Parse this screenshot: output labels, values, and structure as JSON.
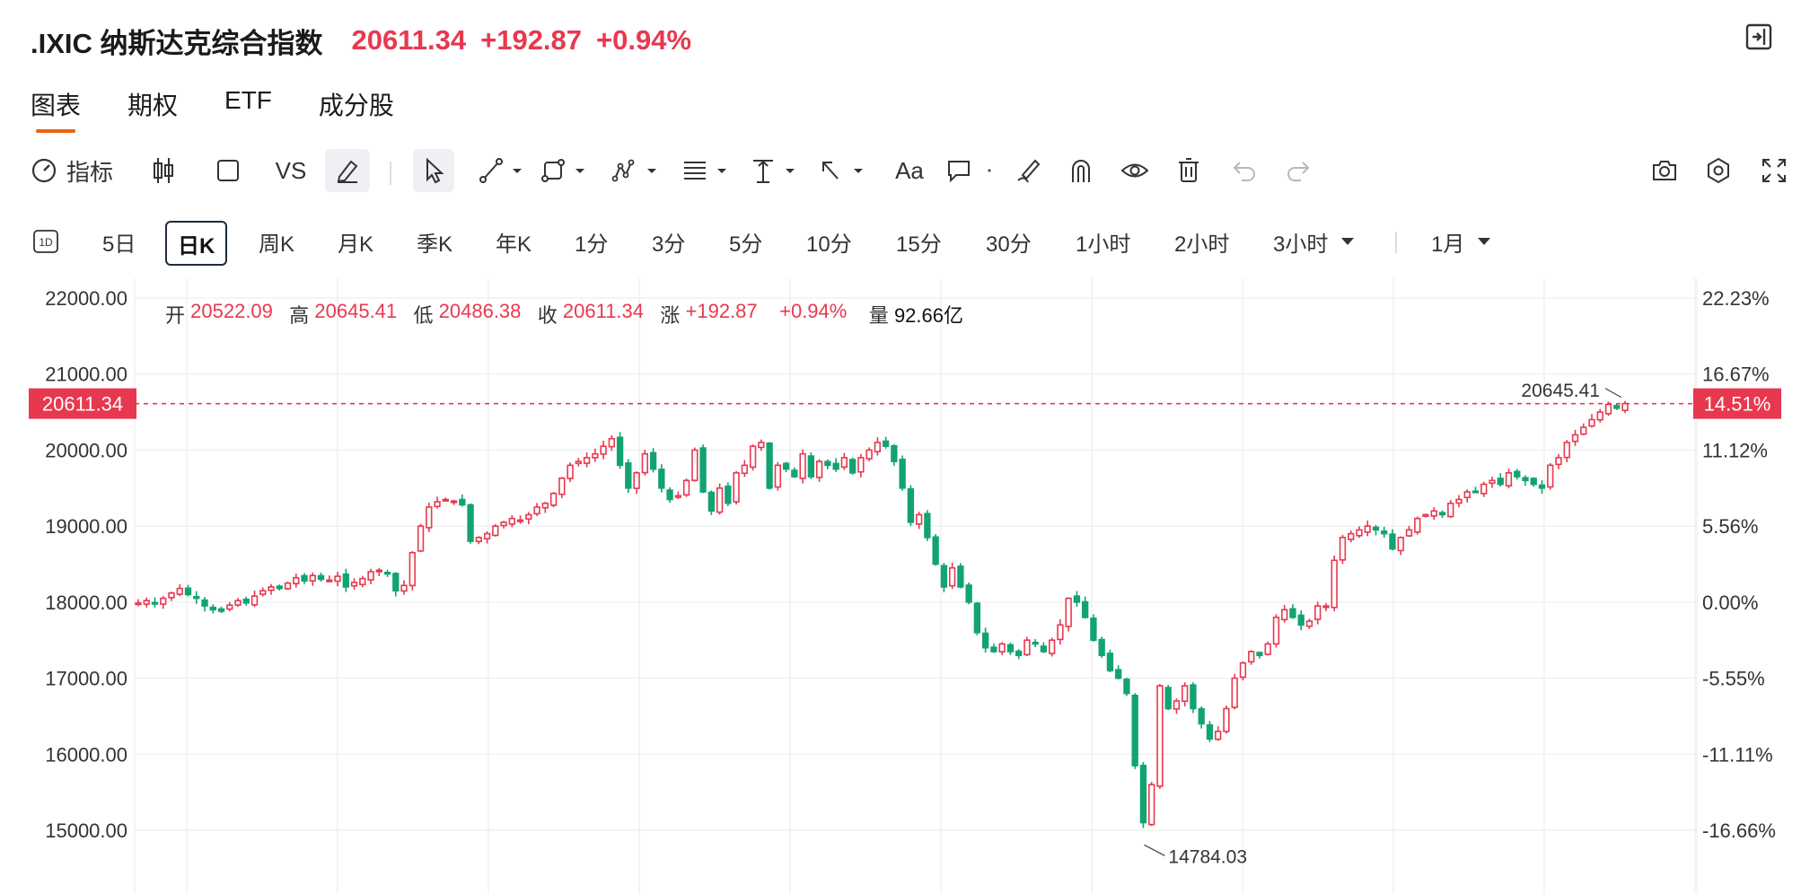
{
  "header": {
    "title": ".IXIC 纳斯达克综合指数",
    "price": "20611.34",
    "change": "+192.87",
    "change_pct": "+0.94%"
  },
  "tabs": [
    {
      "label": "图表",
      "active": true
    },
    {
      "label": "期权"
    },
    {
      "label": "ETF"
    },
    {
      "label": "成分股"
    }
  ],
  "toolbar": {
    "indicator_label": "指标",
    "vs_label": "VS",
    "text_label": "Aa"
  },
  "periods": {
    "icon_label": "1D",
    "items": [
      "5日",
      "日K",
      "周K",
      "月K",
      "季K",
      "年K",
      "1分",
      "3分",
      "5分",
      "10分",
      "15分",
      "30分",
      "1小时",
      "2小时",
      "3小时"
    ],
    "selected": "日K",
    "range_label": "1月"
  },
  "ohlc": {
    "open_label": "开",
    "open": "20522.09",
    "high_label": "高",
    "high": "20645.41",
    "low_label": "低",
    "low": "20486.38",
    "close_label": "收",
    "close": "20611.34",
    "chg_label": "涨",
    "chg": "+192.87",
    "chg_pct": "+0.94%",
    "vol_label": "量",
    "vol": "92.66亿"
  },
  "colors": {
    "up": "#e8384f",
    "down": "#12a372",
    "accent": "#e8640a"
  },
  "chart_data": {
    "type": "candlestick",
    "y_left_ticks": [
      "22000.00",
      "21000.00",
      "20000.00",
      "19000.00",
      "18000.00",
      "17000.00",
      "16000.00",
      "15000.00"
    ],
    "y_right_ticks": [
      "22.23%",
      "16.67%",
      "11.12%",
      "5.56%",
      "0.00%",
      "-5.55%",
      "-11.11%",
      "-16.66%"
    ],
    "ylim": [
      14200,
      22200
    ],
    "current_price_label": "20611.34",
    "current_pct_label": "14.51%",
    "high_annotation": "20645.41",
    "low_annotation": "14784.03",
    "closes": [
      17990,
      18020,
      17980,
      18050,
      18120,
      18180,
      18100,
      18050,
      17950,
      17900,
      17880,
      17960,
      18020,
      17990,
      18080,
      18150,
      18200,
      18180,
      18250,
      18320,
      18280,
      18350,
      18300,
      18290,
      18340,
      18200,
      18260,
      18310,
      18400,
      18420,
      18380,
      18150,
      18220,
      18650,
      19000,
      19250,
      19320,
      19350,
      19330,
      19280,
      18800,
      18850,
      18900,
      19000,
      19050,
      19100,
      19080,
      19150,
      19250,
      19300,
      19430,
      19630,
      19800,
      19850,
      19900,
      19950,
      20050,
      20150,
      19800,
      19500,
      19700,
      19950,
      19750,
      19500,
      19350,
      19400,
      19600,
      20000,
      19450,
      19200,
      19500,
      19300,
      19700,
      19800,
      20050,
      20100,
      19500,
      19800,
      19750,
      19650,
      19950,
      19650,
      19850,
      19800,
      19750,
      19900,
      19700,
      19900,
      20000,
      20100,
      20050,
      19850,
      19500,
      19050,
      19150,
      18850,
      18500,
      18200,
      18450,
      18200,
      18000,
      17600,
      17400,
      17350,
      17450,
      17350,
      17300,
      17500,
      17450,
      17350,
      17500,
      17700,
      18050,
      18000,
      17800,
      17500,
      17300,
      17100,
      17000,
      16800,
      15850,
      15100,
      15600,
      16900,
      16600,
      16700,
      16900,
      16600,
      16400,
      16200,
      16300,
      16600,
      17000,
      17200,
      17350,
      17300,
      17450,
      17800,
      17900,
      17800,
      17700,
      17750,
      17950,
      17950,
      18550,
      18850,
      18900,
      18950,
      19000,
      18950,
      18900,
      18700,
      18850,
      18950,
      19100,
      19150,
      19200,
      19150,
      19300,
      19350,
      19450,
      19450,
      19550,
      19600,
      19550,
      19700,
      19650,
      19600,
      19550,
      19500,
      19800,
      19900,
      20100,
      20200,
      20300,
      20400,
      20500,
      20600,
      20550,
      20611.34
    ]
  }
}
